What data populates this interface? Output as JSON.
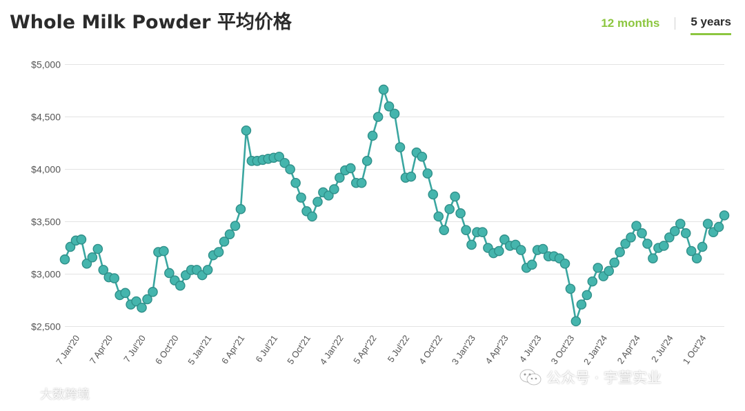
{
  "header": {
    "title": "Whole Milk Powder 平均价格",
    "tabs": [
      {
        "label": "12 months",
        "active": false
      },
      {
        "label": "5 years",
        "active": true
      }
    ]
  },
  "watermarks": {
    "left": "大数跨境",
    "right": "公众号 · 宇萱实业"
  },
  "colors": {
    "line": "#3aa6a0",
    "marker_fill": "#45b5ad",
    "marker_stroke": "#2f8f89",
    "grid": "#e3e3e3",
    "accent": "#8cc63f"
  },
  "chart_data": {
    "type": "line",
    "ylim": [
      2500,
      5000
    ],
    "y_ticks": [
      {
        "value": 2500,
        "label": "$2,500"
      },
      {
        "value": 3000,
        "label": "$3,000"
      },
      {
        "value": 3500,
        "label": "$3,500"
      },
      {
        "value": 4000,
        "label": "$4,000"
      },
      {
        "value": 4500,
        "label": "$4,500"
      },
      {
        "value": 5000,
        "label": "$5,000"
      }
    ],
    "x_tick_labels": [
      "7 Jan'20",
      "7 Apr'20",
      "7 Jul'20",
      "6 Oct'20",
      "5 Jan'21",
      "6 Apr'21",
      "6 Jul'21",
      "5 Oct'21",
      "4 Jan'22",
      "5 Apr'22",
      "5 Jul'22",
      "4 Oct'22",
      "3 Jan'23",
      "4 Apr'23",
      "4 Jul'23",
      "3 Oct'23",
      "2 Jan'24",
      "2 Apr'24",
      "2 Jul'24",
      "1 Oct'24"
    ],
    "x_tick_positions": [
      2,
      8,
      14,
      20,
      26,
      32,
      38,
      44,
      50,
      56,
      62,
      68,
      74,
      80,
      86,
      92,
      98,
      104,
      110,
      116
    ],
    "series": [
      {
        "values": [
          3140,
          3260,
          3320,
          3330,
          3100,
          3160,
          3240,
          3040,
          2970,
          2960,
          2800,
          2820,
          2710,
          2740,
          2680,
          2760,
          2830,
          3210,
          3220,
          3010,
          2940,
          2890,
          2990,
          3040,
          3040,
          2990,
          3040,
          3180,
          3210,
          3310,
          3380,
          3460,
          3620,
          4370,
          4080,
          4080,
          4090,
          4100,
          4110,
          4120,
          4060,
          4000,
          3870,
          3730,
          3600,
          3550,
          3690,
          3780,
          3750,
          3810,
          3920,
          3990,
          4010,
          3870,
          3870,
          4080,
          4320,
          4500,
          4760,
          4600,
          4530,
          4210,
          3920,
          3930,
          4160,
          4120,
          3960,
          3760,
          3550,
          3420,
          3620,
          3740,
          3580,
          3420,
          3280,
          3400,
          3400,
          3250,
          3200,
          3220,
          3330,
          3270,
          3280,
          3230,
          3060,
          3090,
          3230,
          3240,
          3170,
          3170,
          3150,
          3100,
          2860,
          2550,
          2710,
          2800,
          2930,
          3060,
          2980,
          3030,
          3110,
          3210,
          3290,
          3350,
          3460,
          3390,
          3290,
          3150,
          3250,
          3270,
          3350,
          3410,
          3480,
          3390,
          3220,
          3150,
          3260,
          3480,
          3400,
          3450,
          3560
        ]
      }
    ]
  }
}
